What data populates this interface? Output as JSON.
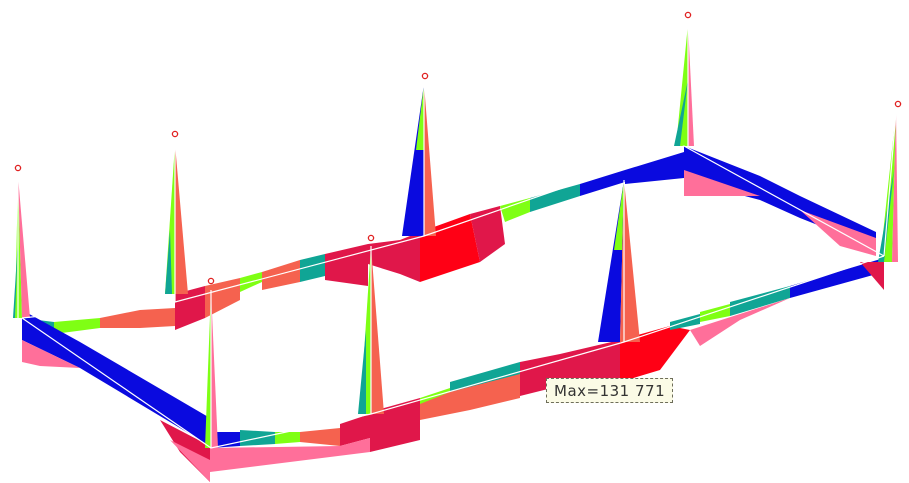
{
  "max_label": "Max=131 771",
  "colors": {
    "blue": "#0a0adf",
    "teal": "#10a595",
    "green": "#7fff14",
    "salmon": "#f5624f",
    "crimson": "#e0174a",
    "red": "#ff0015",
    "pink": "#ff6f9a",
    "support": "#e02020"
  }
}
